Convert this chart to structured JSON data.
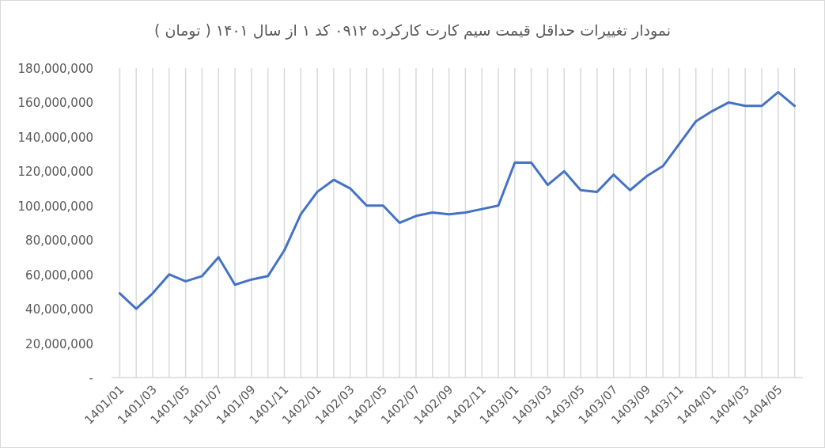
{
  "chart_data": {
    "type": "line",
    "title": "نمودار تغییرات حداقل قیمت سیم کارت کارکرده ۰۹۱۲ کد ۱ از سال ۱۴۰۱ ( تومان )",
    "categories": [
      "1401/01",
      null,
      "1401/03",
      null,
      "1401/05",
      null,
      "1401/07",
      null,
      "1401/09",
      null,
      "1401/11",
      null,
      "1402/01",
      null,
      "1402/03",
      null,
      "1402/05",
      null,
      "1402/07",
      null,
      "1402/09",
      null,
      "1402/11",
      null,
      "1403/01",
      null,
      "1403/03",
      null,
      "1403/05",
      null,
      "1403/07",
      null,
      "1403/09",
      null,
      "1403/11",
      null,
      "1404/01",
      null,
      "1404/03",
      null,
      "1404/05",
      null
    ],
    "series": [
      {
        "color": "#4472c4",
        "values": [
          49000000,
          40000000,
          49000000,
          60000000,
          56000000,
          59000000,
          70000000,
          54000000,
          57000000,
          59000000,
          74000000,
          95000000,
          108000000,
          115000000,
          110000000,
          100000000,
          100000000,
          90000000,
          94000000,
          96000000,
          95000000,
          96000000,
          98000000,
          100000000,
          125000000,
          125000000,
          112000000,
          120000000,
          109000000,
          108000000,
          118000000,
          109000000,
          117000000,
          123000000,
          136000000,
          149000000,
          155000000,
          160000000,
          158000000,
          158000000,
          166000000,
          158000000
        ]
      }
    ],
    "ylim": [
      0,
      180000000
    ],
    "yticks": [
      {
        "value": 0,
        "label": "-"
      },
      {
        "value": 20000000,
        "label": "20,000,000"
      },
      {
        "value": 40000000,
        "label": "40,000,000"
      },
      {
        "value": 60000000,
        "label": "60,000,000"
      },
      {
        "value": 80000000,
        "label": "80,000,000"
      },
      {
        "value": 100000000,
        "label": "100,000,000"
      },
      {
        "value": 120000000,
        "label": "120,000,000"
      },
      {
        "value": 140000000,
        "label": "140,000,000"
      },
      {
        "value": 160000000,
        "label": "160,000,000"
      },
      {
        "value": 180000000,
        "label": "180,000,000"
      }
    ],
    "grid": "x",
    "marker": "none",
    "line_style": "solid"
  }
}
